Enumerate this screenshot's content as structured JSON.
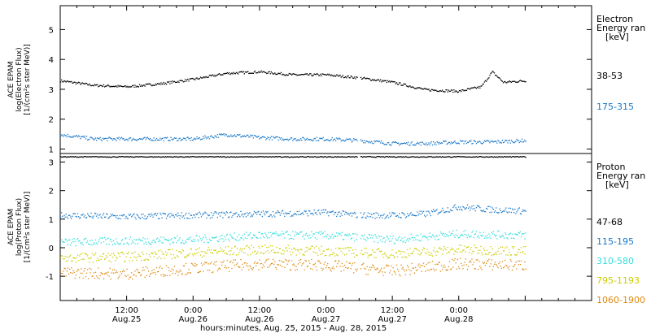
{
  "chart_data": [
    {
      "type": "scatter",
      "panel": "electron",
      "ylabel_lines": [
        "ACE EPAM",
        "log(Electron Flux)",
        "[1/(cm²s ster MeV)]"
      ],
      "legend_title": [
        "Electron",
        "Energy ran",
        "[keV]"
      ],
      "ylim": [
        0.85,
        5.8
      ],
      "yticks": [
        1,
        2,
        3,
        4,
        5
      ],
      "series": [
        {
          "name": "38-53",
          "color": "#000000",
          "x": [
            0,
            6,
            12,
            18,
            24,
            30,
            36,
            42,
            48,
            54,
            60,
            66,
            72,
            76,
            78,
            80,
            84
          ],
          "y": [
            3.3,
            3.15,
            3.1,
            3.2,
            3.35,
            3.55,
            3.6,
            3.5,
            3.5,
            3.4,
            3.25,
            3.0,
            2.95,
            3.1,
            3.6,
            3.25,
            3.3
          ]
        },
        {
          "name": "175-315",
          "color": "#1a78c8",
          "x": [
            0,
            6,
            12,
            18,
            24,
            30,
            36,
            42,
            48,
            54,
            60,
            66,
            72,
            78,
            84
          ],
          "y": [
            1.5,
            1.35,
            1.35,
            1.35,
            1.35,
            1.5,
            1.4,
            1.35,
            1.35,
            1.3,
            1.2,
            1.2,
            1.25,
            1.25,
            1.3
          ]
        }
      ]
    },
    {
      "type": "scatter",
      "panel": "proton",
      "ylabel_lines": [
        "ACE EPAM",
        "log(Proton Flux)",
        "[1/(cm²s ster MeV)]"
      ],
      "legend_title": [
        "Proton",
        "Energy ran",
        "[keV]"
      ],
      "ylim": [
        -1.85,
        3.3
      ],
      "yticks": [
        -1,
        0,
        1,
        2,
        3
      ],
      "series": [
        {
          "name": "47-68",
          "color": "#000000",
          "x": [
            0,
            84
          ],
          "y": [
            3.2,
            3.2
          ]
        },
        {
          "name": "115-195",
          "color": "#1a78c8",
          "x": [
            0,
            12,
            24,
            36,
            48,
            54,
            60,
            66,
            72,
            78,
            84
          ],
          "y": [
            1.15,
            1.1,
            1.15,
            1.2,
            1.25,
            1.15,
            1.15,
            1.2,
            1.45,
            1.35,
            1.3
          ]
        },
        {
          "name": "310-580",
          "color": "#33dddd",
          "x": [
            0,
            12,
            24,
            36,
            48,
            60,
            72,
            84
          ],
          "y": [
            0.2,
            0.25,
            0.3,
            0.45,
            0.45,
            0.3,
            0.5,
            0.45
          ]
        },
        {
          "name": "795-1193",
          "color": "#cccc00",
          "x": [
            0,
            12,
            24,
            36,
            48,
            60,
            72,
            84
          ],
          "y": [
            -0.35,
            -0.3,
            -0.15,
            -0.05,
            -0.1,
            -0.2,
            -0.05,
            -0.1
          ]
        },
        {
          "name": "1060-1900",
          "color": "#e08a10",
          "x": [
            0,
            12,
            24,
            36,
            48,
            60,
            72,
            84
          ],
          "y": [
            -0.85,
            -0.9,
            -0.7,
            -0.55,
            -0.6,
            -0.8,
            -0.55,
            -0.6
          ]
        }
      ]
    }
  ],
  "x_axis": {
    "xlim": [
      0,
      96
    ],
    "ticks": [
      {
        "x": 12,
        "time": "12:00",
        "date": "Aug.25"
      },
      {
        "x": 24,
        "time": "0:00",
        "date": "Aug.26"
      },
      {
        "x": 36,
        "time": "12:00",
        "date": "Aug.26"
      },
      {
        "x": 48,
        "time": "0:00",
        "date": "Aug.27"
      },
      {
        "x": 60,
        "time": "12:00",
        "date": "Aug.27"
      },
      {
        "x": 72,
        "time": "0:00",
        "date": "Aug.28"
      }
    ],
    "xlabel": "hours:minutes, Aug. 25, 2015 - Aug. 28, 2015"
  }
}
